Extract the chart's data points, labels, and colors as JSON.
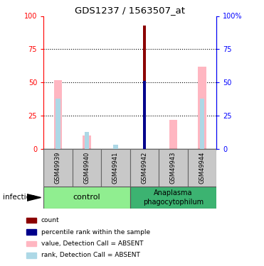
{
  "title": "GDS1237 / 1563507_at",
  "samples": [
    "GSM49939",
    "GSM49940",
    "GSM49941",
    "GSM49942",
    "GSM49943",
    "GSM49944"
  ],
  "count_values": [
    0,
    0,
    0,
    93,
    0,
    0
  ],
  "percentile_values": [
    0,
    0,
    0,
    51,
    0,
    0
  ],
  "value_absent": [
    52,
    10,
    0,
    0,
    22,
    62
  ],
  "rank_absent": [
    38,
    13,
    3,
    0,
    0,
    38
  ],
  "count_color": "#8B0000",
  "percentile_color": "#00008B",
  "value_absent_color": "#FFB6C1",
  "rank_absent_color": "#ADD8E6",
  "ylim": [
    0,
    100
  ],
  "grid_levels": [
    25,
    50,
    75
  ],
  "xlabel_area_color": "#C0C0C0",
  "control_color": "#90EE90",
  "anaplasma_color": "#3CB371",
  "legend_labels": [
    "count",
    "percentile rank within the sample",
    "value, Detection Call = ABSENT",
    "rank, Detection Call = ABSENT"
  ],
  "legend_colors": [
    "#8B0000",
    "#00008B",
    "#FFB6C1",
    "#ADD8E6"
  ],
  "right_ytick_labels": [
    "0",
    "25",
    "50",
    "75",
    "100%"
  ],
  "left_ytick_labels": [
    "0",
    "25",
    "50",
    "75",
    "100"
  ]
}
